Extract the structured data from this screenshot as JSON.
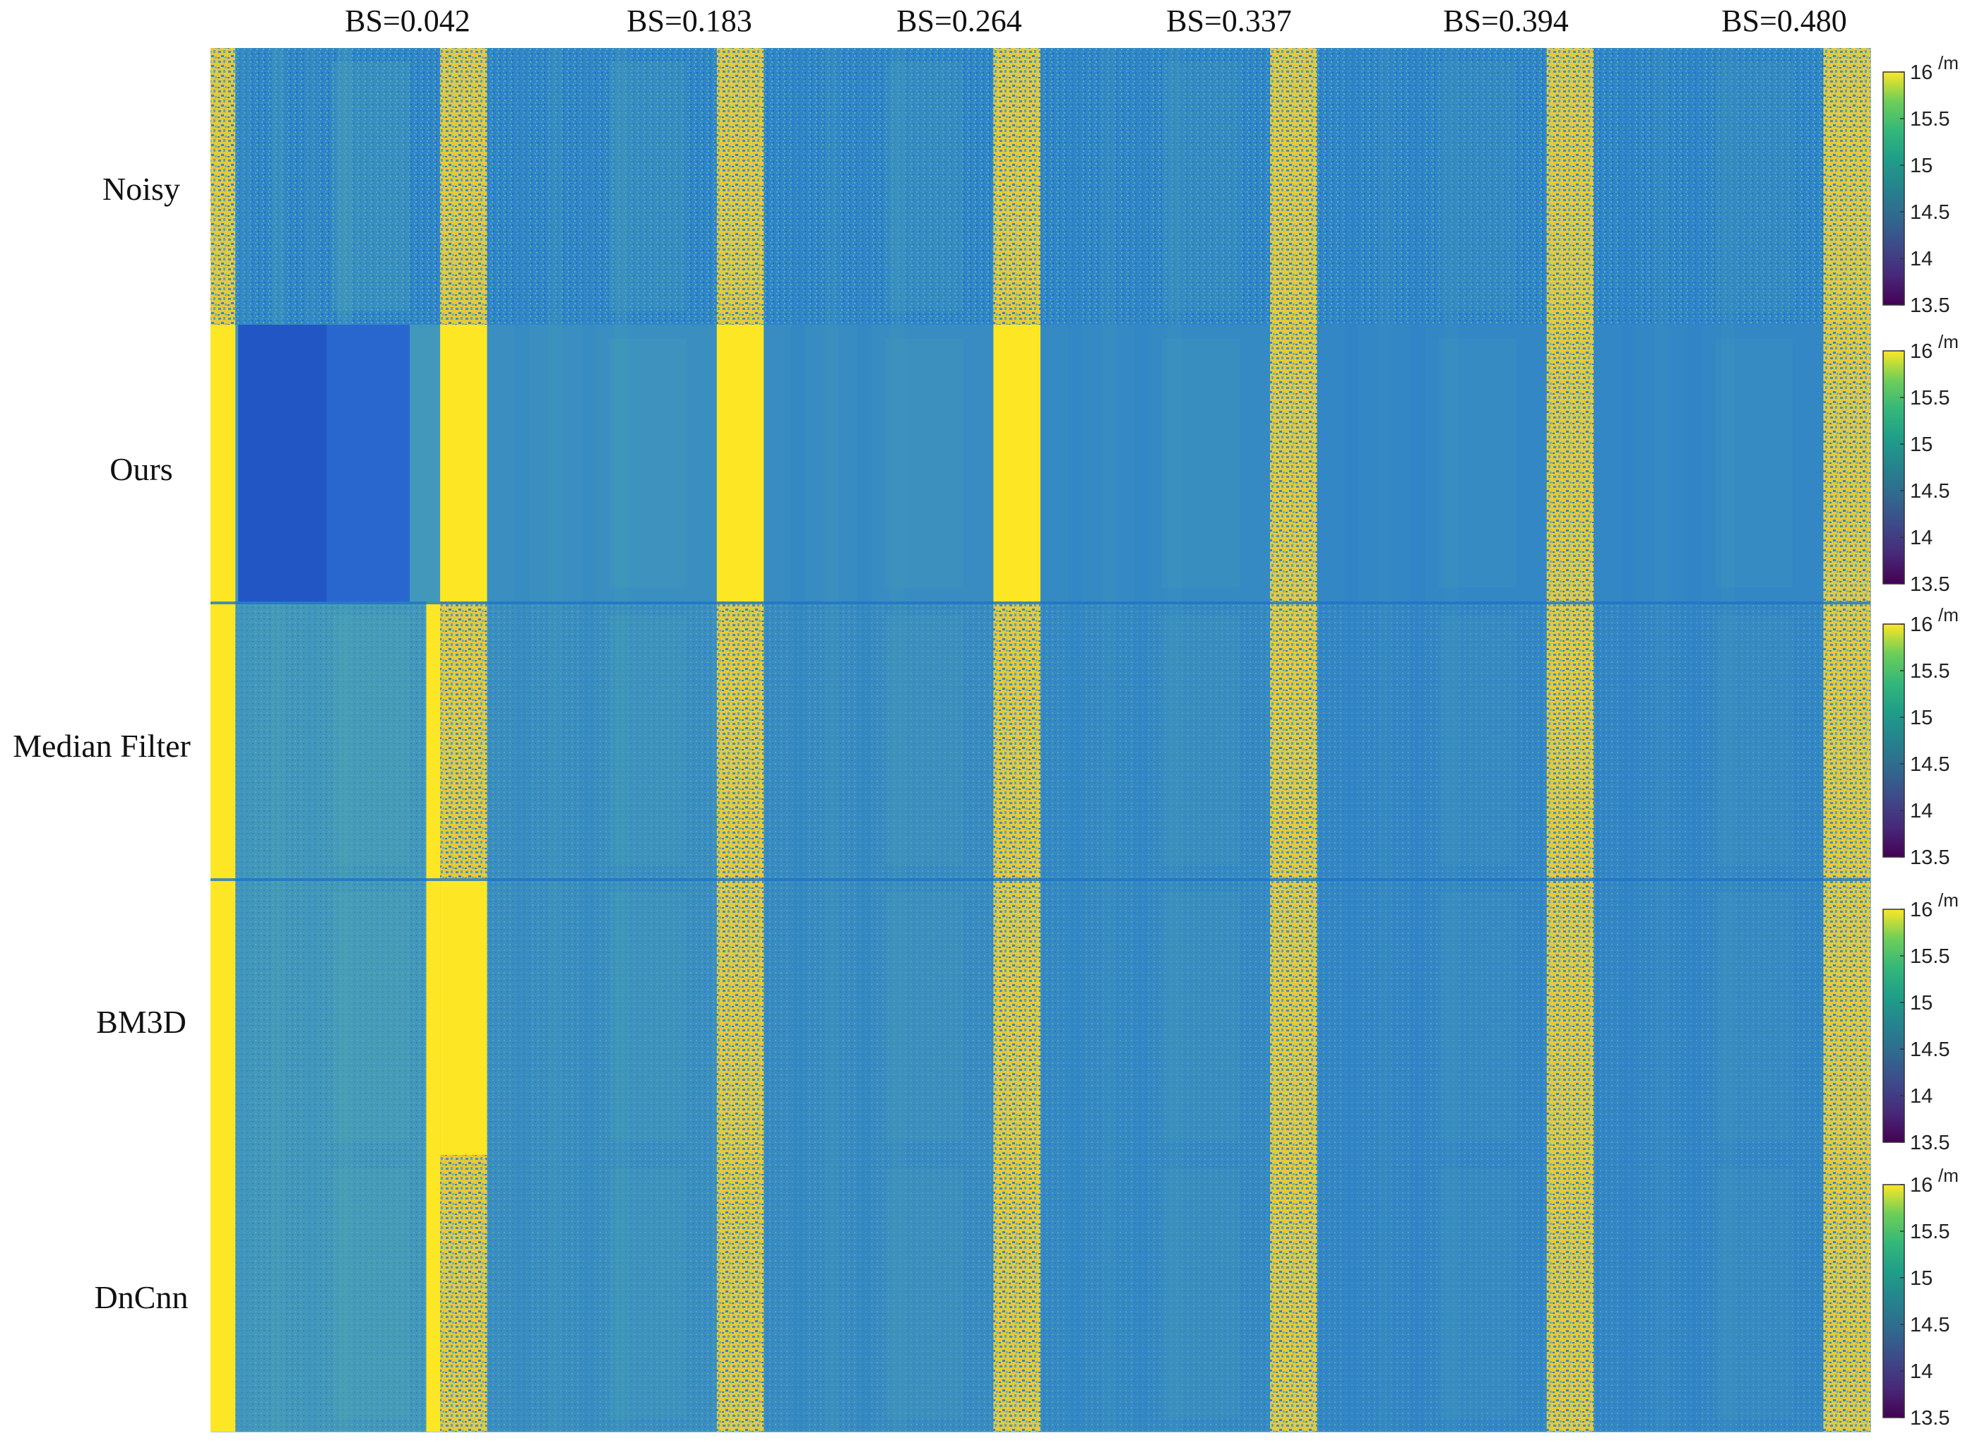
{
  "chart_data": {
    "type": "heatmap",
    "title": "",
    "columns": [
      "BS=0.042",
      "BS=0.183",
      "BS=0.264",
      "BS=0.337",
      "BS=0.394",
      "BS=0.480"
    ],
    "rows": [
      "Noisy",
      "Ours",
      "Median Filter",
      "BM3D",
      "DnCnn"
    ],
    "colorbar": {
      "min": 13.5,
      "max": 16,
      "ticks": [
        "16",
        "15.5",
        "15",
        "14.5",
        "14",
        "13.5"
      ],
      "unit": "/m",
      "colormap": "viridis"
    },
    "panel_features": [
      {
        "column": "BS=0.042",
        "left_band": true,
        "right_band": true,
        "band_level": 16,
        "background_level": 14.75
      },
      {
        "column": "BS=0.183",
        "right_band": true,
        "band_level": 16,
        "background_level": 14.6
      },
      {
        "column": "BS=0.264",
        "right_band": true,
        "band_level": 16,
        "background_level": 14.55
      },
      {
        "column": "BS=0.337",
        "right_band": true,
        "band_level": 15.8,
        "background_level": 14.5
      },
      {
        "column": "BS=0.394",
        "right_band": true,
        "band_level": 15.7,
        "background_level": 14.45
      },
      {
        "column": "BS=0.480",
        "right_band": true,
        "band_level": 15.3,
        "background_level": 14.45
      }
    ]
  },
  "colors": {
    "viridis_low": "#440154",
    "viridis_mid": "#21918c",
    "viridis_high": "#fde725",
    "panel_blue": "#2e86c8",
    "band_yellow": "#f2c83a"
  }
}
